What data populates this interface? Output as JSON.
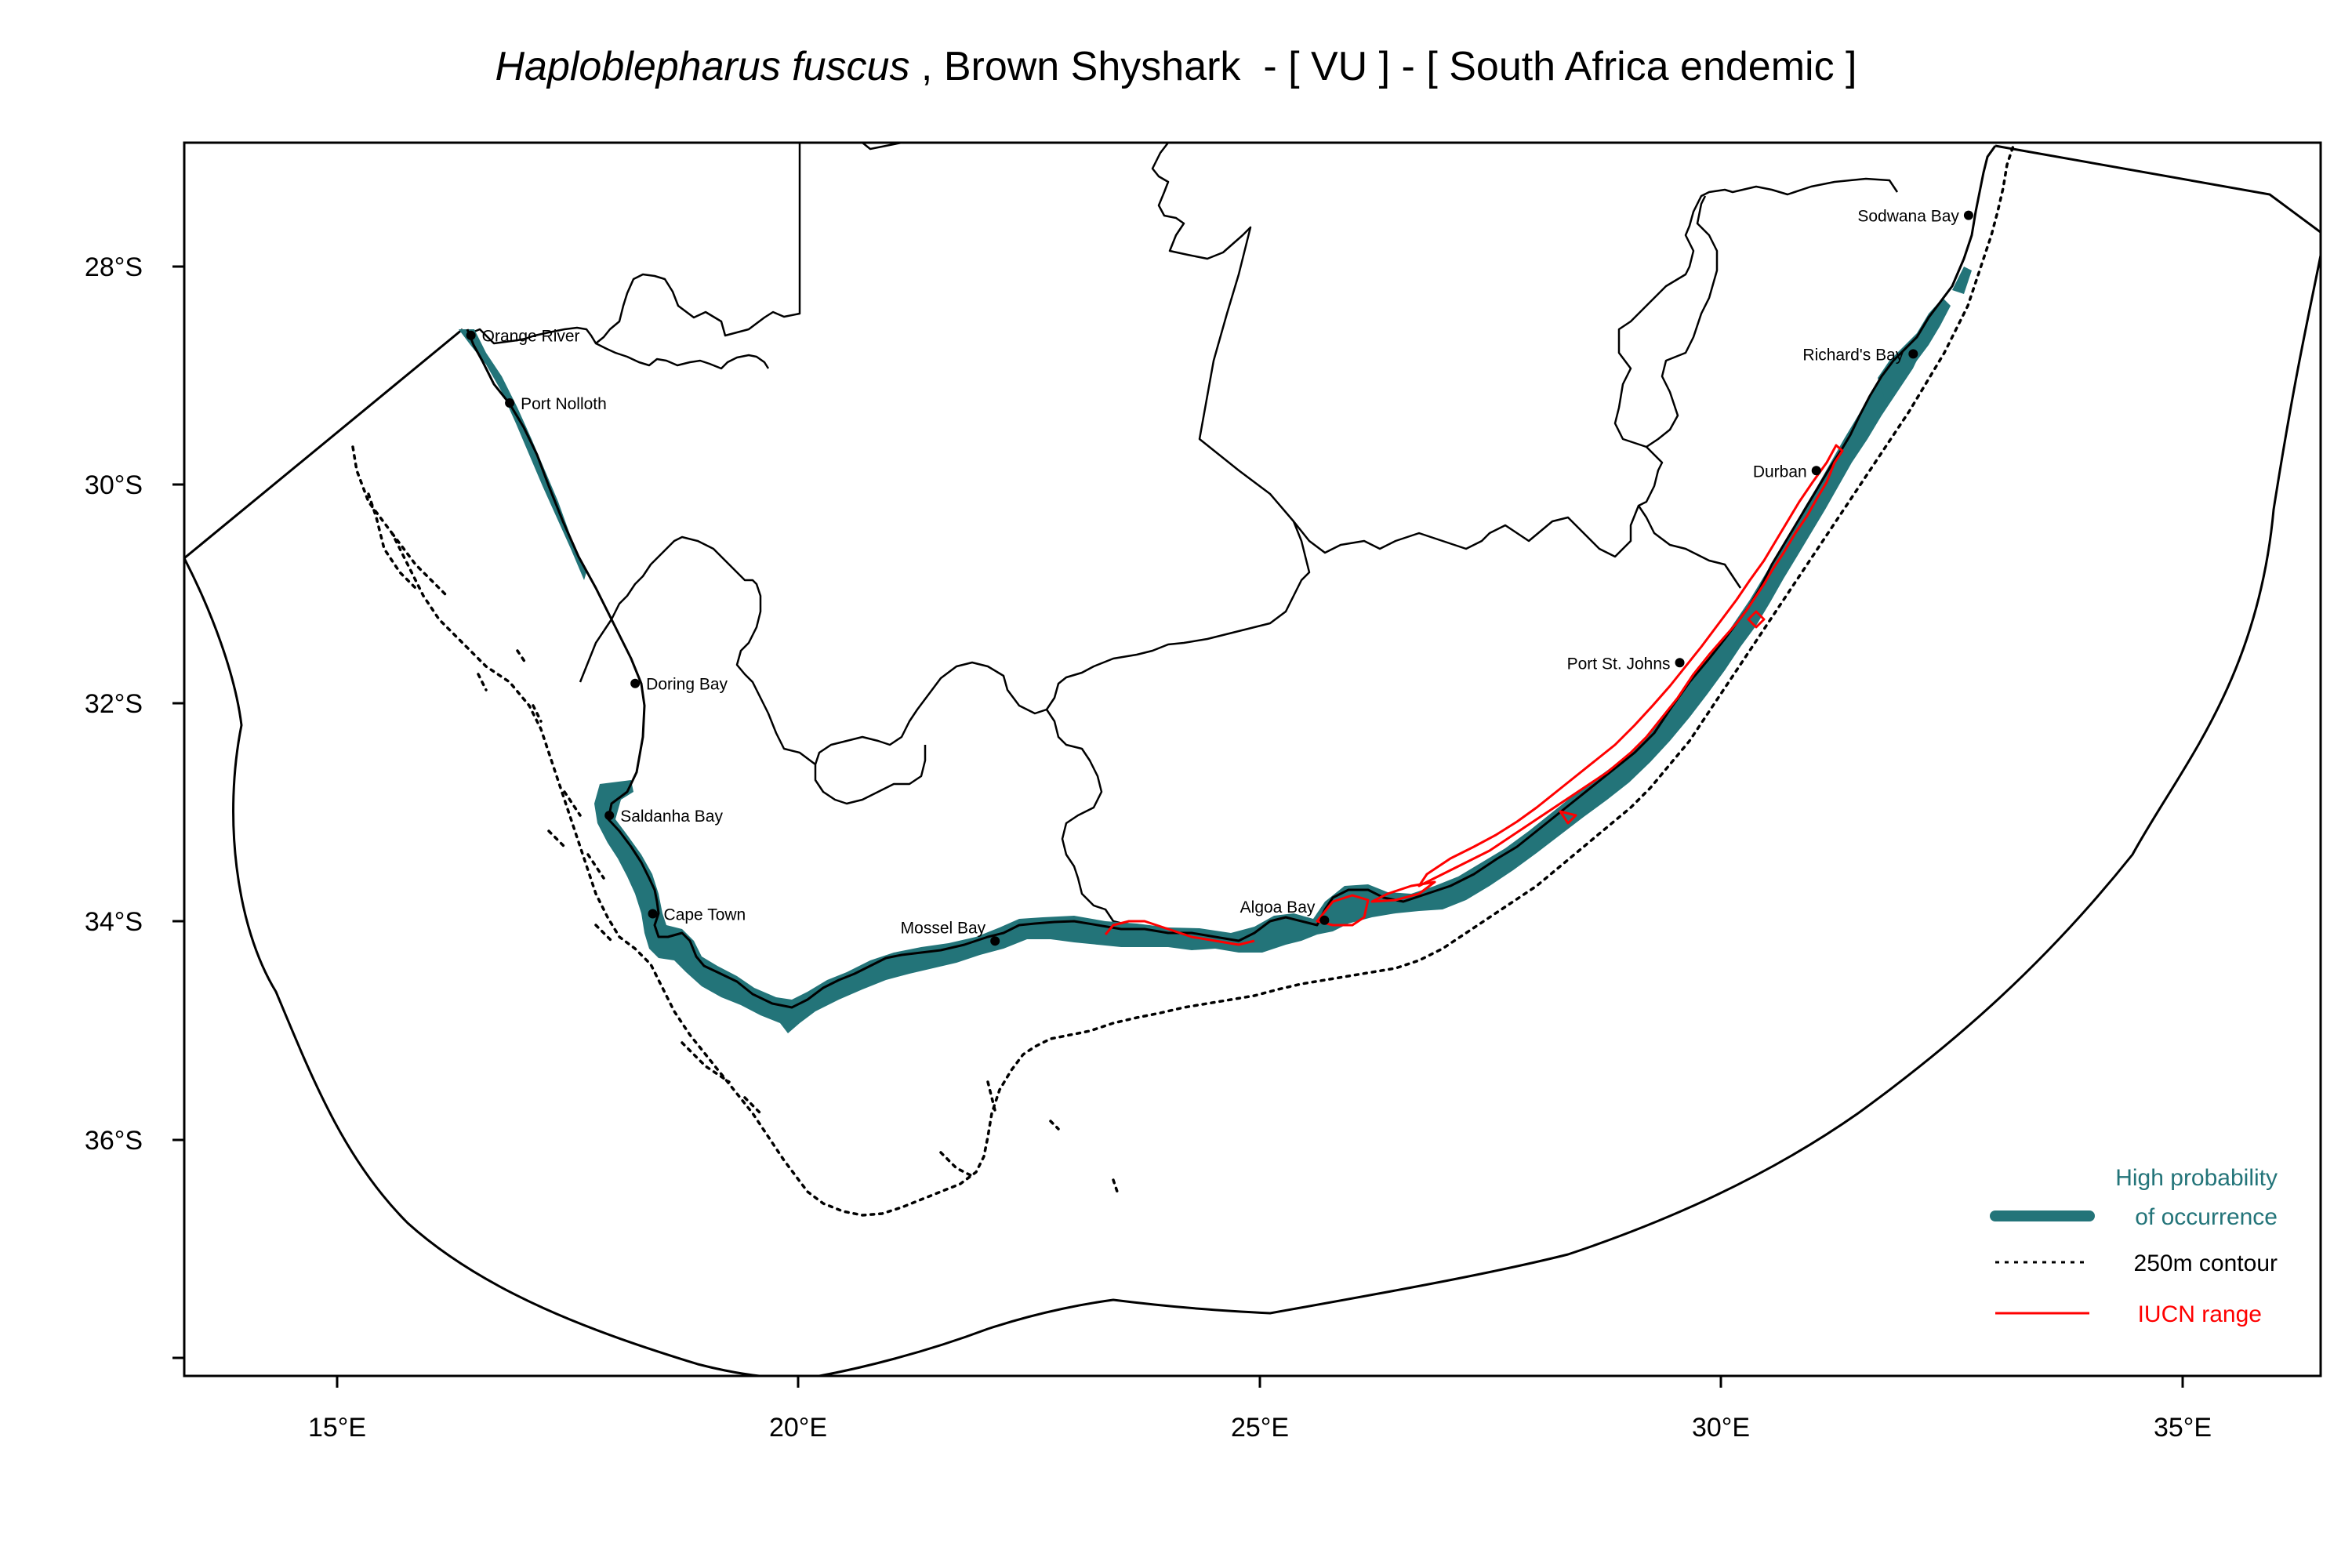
{
  "title": {
    "species": "Haploblepharus fuscus",
    "rest": " , Brown Shyshark  - [ VU ] - [ South Africa endemic ]"
  },
  "axes": {
    "x_ticks": [
      "15°E",
      "20°E",
      "25°E",
      "30°E",
      "35°E"
    ],
    "y_ticks": [
      "28°S",
      "30°S",
      "32°S",
      "34°S",
      "36°S"
    ]
  },
  "places": [
    {
      "name": "Orange River",
      "lon": 16.45,
      "lat": -28.63
    },
    {
      "name": "Port Nolloth",
      "lon": 16.87,
      "lat": -29.25
    },
    {
      "name": "Doring Bay",
      "lon": 18.23,
      "lat": -31.82
    },
    {
      "name": "Saldanha Bay",
      "lon": 17.95,
      "lat": -33.03
    },
    {
      "name": "Cape Town",
      "lon": 18.42,
      "lat": -33.93
    },
    {
      "name": "Mossel Bay",
      "lon": 22.13,
      "lat": -34.18
    },
    {
      "name": "Algoa Bay",
      "lon": 25.7,
      "lat": -33.99
    },
    {
      "name": "Port St. Johns",
      "lon": 29.55,
      "lat": -31.63
    },
    {
      "name": "Durban",
      "lon": 31.03,
      "lat": -29.87
    },
    {
      "name": "Richard's Bay",
      "lon": 32.08,
      "lat": -28.8
    },
    {
      "name": "Sodwana Bay",
      "lon": 32.68,
      "lat": -27.53
    }
  ],
  "legend": {
    "occurrence_line1": "High probability",
    "occurrence_line2": "of occurrence",
    "contour": "250m contour",
    "iucn": "IUCN range"
  },
  "colors": {
    "occurrence": "#237479",
    "iucn": "#ff0000",
    "land_outline": "#000000"
  }
}
